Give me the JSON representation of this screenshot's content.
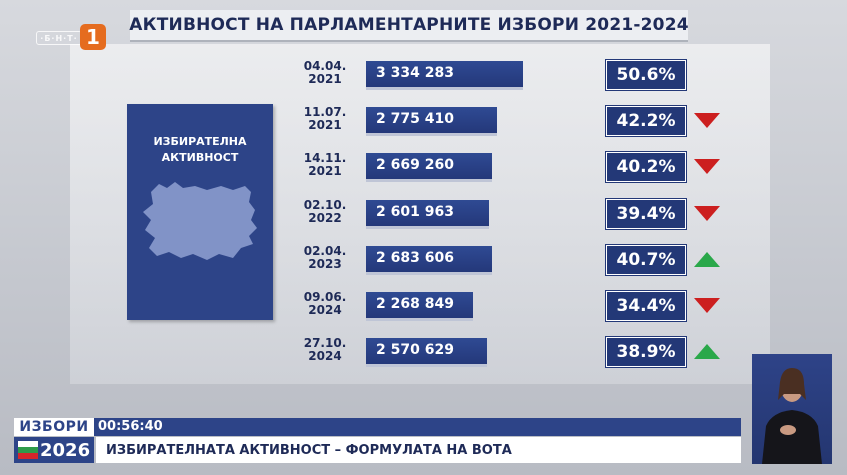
{
  "title": "АКТИВНОСТ НА ПАРЛАМЕНТАРНИТЕ ИЗБОРИ 2021-2024",
  "channel": {
    "bnt_label": "·Б·Н·Т·",
    "number": "1"
  },
  "card": {
    "title": "ИЗБИРАТЕЛНА\nАКТИВНОСТ"
  },
  "colors": {
    "bar": "#2d4488",
    "down": "#cc1f1f",
    "up": "#2aa84a"
  },
  "chart_data": {
    "type": "bar",
    "title": "АКТИВНОСТ НА ПАРЛАМЕНТАРНИТЕ ИЗБОРИ 2021-2024",
    "categories": [
      "04.04.\n2021",
      "11.07.\n2021",
      "14.11.\n2021",
      "02.10.\n2022",
      "02.04.\n2023",
      "09.06.\n2024",
      "27.10.\n2024"
    ],
    "values": [
      3334283,
      2775410,
      2669260,
      2601963,
      2683606,
      2268849,
      2570629
    ],
    "value_labels": [
      "3 334 283",
      "2 775 410",
      "2 669 260",
      "2 601 963",
      "2 683 606",
      "2 268 849",
      "2 570 629"
    ],
    "percent_labels": [
      "50.6%",
      "42.2%",
      "40.2%",
      "39.4%",
      "40.7%",
      "34.4%",
      "38.9%"
    ],
    "percent_values": [
      50.6,
      42.2,
      40.2,
      39.4,
      40.7,
      34.4,
      38.9
    ],
    "trend": [
      "none",
      "down",
      "down",
      "down",
      "up",
      "down",
      "up"
    ],
    "orientation": "horizontal"
  },
  "ticker": {
    "brand": "ИЗБОРИ",
    "year": "2026",
    "time": "00:56:40",
    "headline": "ИЗБИРАТЕЛНАТА АКТИВНОСТ – ФОРМУЛАТА НА ВОТА"
  },
  "icons": {
    "map": "bulgaria-map-icon",
    "interpreter": "sign-language-interpreter"
  }
}
